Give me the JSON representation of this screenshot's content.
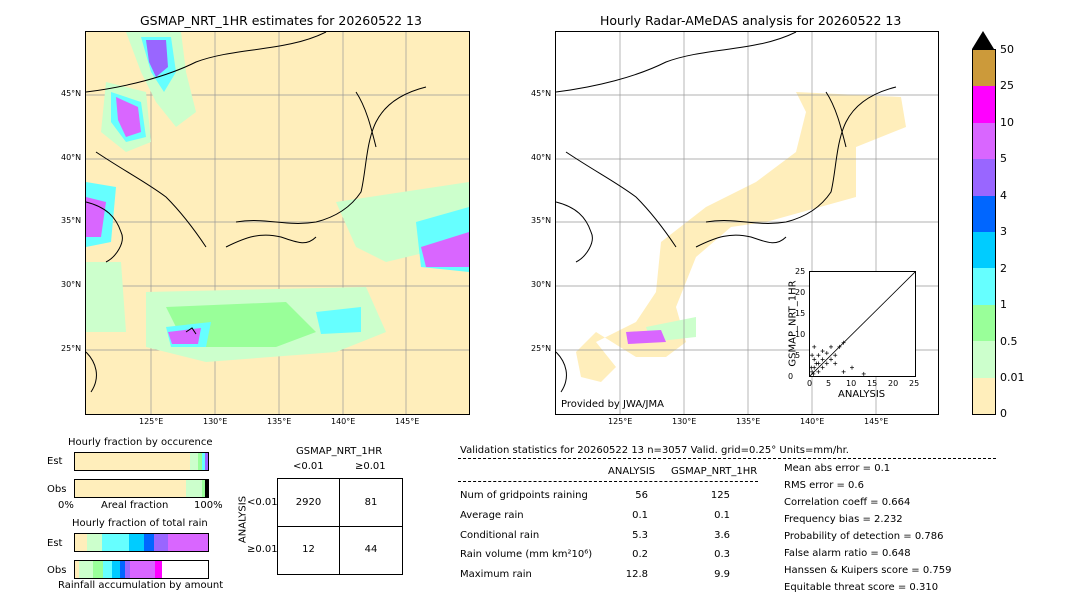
{
  "left_map": {
    "title": "GSMAP_NRT_1HR estimates for 20260522 13",
    "lat_ticks": [
      "45°N",
      "40°N",
      "35°N",
      "30°N",
      "25°N"
    ],
    "lon_ticks": [
      "125°E",
      "130°E",
      "135°E",
      "140°E",
      "145°E"
    ]
  },
  "right_map": {
    "title": "Hourly Radar-AMeDAS analysis for 20260522 13",
    "lat_ticks": [
      "45°N",
      "40°N",
      "35°N",
      "30°N",
      "25°N"
    ],
    "lon_ticks": [
      "125°E",
      "130°E",
      "135°E",
      "140°E",
      "145°E"
    ],
    "credit": "Provided by JWA/JMA"
  },
  "colorbar": {
    "labels": [
      "50",
      "25",
      "10",
      "5",
      "4",
      "3",
      "2",
      "1",
      "0.5",
      "0.01",
      "0"
    ],
    "colors": [
      "#cc9a3a",
      "#ff00ff",
      "#d966ff",
      "#9966ff",
      "#0066ff",
      "#00ccff",
      "#66ffff",
      "#99ff99",
      "#ccffcc",
      "#ffeebb"
    ]
  },
  "scatter": {
    "xlabel": "ANALYSIS",
    "ylabel": "GSMAP_NRT_1HR",
    "ticks": [
      "0",
      "5",
      "10",
      "15",
      "20",
      "25"
    ]
  },
  "occurrence": {
    "title": "Hourly fraction by occurence",
    "row_est": "Est",
    "row_obs": "Obs",
    "axis_left": "0%",
    "axis_mid": "Areal fraction",
    "axis_right": "100%"
  },
  "total_rain": {
    "title": "Hourly fraction of total rain",
    "row_est": "Est",
    "row_obs": "Obs",
    "footer": "Rainfall accumulation by amount"
  },
  "contingency": {
    "title": "GSMAP_NRT_1HR",
    "col1": "<0.01",
    "col2": "≥0.01",
    "side_label": "ANALYSIS",
    "row1": "<0.01",
    "row2": "≥0.01",
    "cells": [
      "2920",
      "81",
      "12",
      "44"
    ]
  },
  "validation": {
    "header": "Validation statistics for 20260522 13  n=3057 Valid. grid=0.25° Units=mm/hr.",
    "col_analysis": "ANALYSIS",
    "col_gsmap": "GSMAP_NRT_1HR",
    "rows": [
      {
        "label": "Num of gridpoints raining",
        "a": "56",
        "g": "125"
      },
      {
        "label": "Average rain",
        "a": "0.1",
        "g": "0.1"
      },
      {
        "label": "Conditional rain",
        "a": "5.3",
        "g": "3.6"
      },
      {
        "label": "Rain volume (mm km²10⁶)",
        "a": "0.2",
        "g": "0.3"
      },
      {
        "label": "Maximum rain",
        "a": "12.8",
        "g": "9.9"
      }
    ],
    "scores": [
      "Mean abs error =    0.1",
      "RMS error =    0.6",
      "Correlation coeff =  0.664",
      "Frequency bias =  2.232",
      "Probability of detection =  0.786",
      "False alarm ratio =  0.648",
      "Hanssen & Kuipers score =  0.759",
      "Equitable threat score =  0.310"
    ]
  }
}
